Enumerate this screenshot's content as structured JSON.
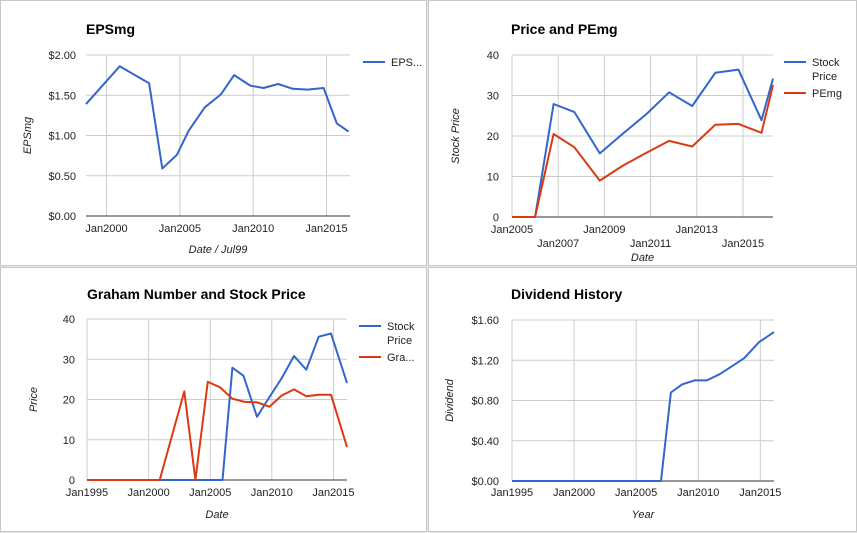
{
  "chart_data": [
    {
      "type": "line",
      "title": "EPSmg",
      "xlabel": "Date / Jul99",
      "ylabel": "EPSmg",
      "xlim": [
        1998.6,
        2016.6
      ],
      "ylim": [
        0,
        2
      ],
      "x_ticks": [
        {
          "v": 2000,
          "label": "Jan2000"
        },
        {
          "v": 2005,
          "label": "Jan2005"
        },
        {
          "v": 2010,
          "label": "Jan2010"
        },
        {
          "v": 2015,
          "label": "Jan2015"
        }
      ],
      "y_ticks": [
        {
          "v": 0,
          "label": "$0.00"
        },
        {
          "v": 0.5,
          "label": "$0.50"
        },
        {
          "v": 1,
          "label": "$1.00"
        },
        {
          "v": 1.5,
          "label": "$1.50"
        },
        {
          "v": 2,
          "label": "$2.00"
        }
      ],
      "grid": true,
      "legend_position": "right",
      "series": [
        {
          "name": "EPS...",
          "color": "#3366cc",
          "x": [
            1998.6,
            2000.9,
            2002.9,
            2003.8,
            2004.8,
            2005.6,
            2006.7,
            2007.8,
            2008.7,
            2009.8,
            2010.7,
            2011.7,
            2012.7,
            2013.7,
            2014.8,
            2015.7,
            2016.5
          ],
          "values": [
            1.39,
            1.86,
            1.65,
            0.59,
            0.76,
            1.06,
            1.35,
            1.51,
            1.75,
            1.62,
            1.59,
            1.64,
            1.58,
            1.57,
            1.59,
            1.15,
            1.05
          ]
        }
      ]
    },
    {
      "type": "line",
      "title": "Price and PEmg",
      "xlabel": "Date",
      "ylabel": "Stock Price",
      "xlim": [
        2005,
        2016.3
      ],
      "ylim": [
        0,
        40
      ],
      "x_ticks": [
        {
          "v": 2005,
          "label": "Jan2005",
          "row": 0
        },
        {
          "v": 2007,
          "label": "Jan2007",
          "row": 1
        },
        {
          "v": 2009,
          "label": "Jan2009",
          "row": 0
        },
        {
          "v": 2011,
          "label": "Jan2011",
          "row": 1
        },
        {
          "v": 2013,
          "label": "Jan2013",
          "row": 0
        },
        {
          "v": 2015,
          "label": "Jan2015",
          "row": 1
        }
      ],
      "y_ticks": [
        {
          "v": 0,
          "label": "0"
        },
        {
          "v": 10,
          "label": "10"
        },
        {
          "v": 20,
          "label": "20"
        },
        {
          "v": 30,
          "label": "30"
        },
        {
          "v": 40,
          "label": "40"
        }
      ],
      "grid": true,
      "legend_position": "right",
      "series": [
        {
          "name": "Stock Price",
          "color": "#3366cc",
          "x": [
            2005,
            2006,
            2006.8,
            2007.7,
            2008.8,
            2009.8,
            2010.8,
            2011.8,
            2012.8,
            2013.8,
            2014.8,
            2015.8,
            2016.3
          ],
          "values": [
            0,
            0,
            27.9,
            25.9,
            15.7,
            20.6,
            25.3,
            30.8,
            27.4,
            35.6,
            36.4,
            23.9,
            34.2
          ]
        },
        {
          "name": "PEmg",
          "color": "#dc3912",
          "x": [
            2005,
            2006,
            2006.8,
            2007.7,
            2008.8,
            2009.8,
            2010.8,
            2011.8,
            2012.8,
            2013.8,
            2014.8,
            2015.8,
            2016.3
          ],
          "values": [
            0,
            0,
            20.5,
            17.2,
            9.0,
            12.7,
            15.8,
            18.8,
            17.4,
            22.8,
            23.0,
            20.8,
            32.6
          ]
        }
      ]
    },
    {
      "type": "line",
      "title": "Graham Number and Stock Price",
      "xlabel": "Date",
      "ylabel": "Price",
      "xlim": [
        1995,
        2016.1
      ],
      "ylim": [
        0,
        40
      ],
      "x_ticks": [
        {
          "v": 1995,
          "label": "Jan1995"
        },
        {
          "v": 2000,
          "label": "Jan2000"
        },
        {
          "v": 2005,
          "label": "Jan2005"
        },
        {
          "v": 2010,
          "label": "Jan2010"
        },
        {
          "v": 2015,
          "label": "Jan2015"
        }
      ],
      "y_ticks": [
        {
          "v": 0,
          "label": "0"
        },
        {
          "v": 10,
          "label": "10"
        },
        {
          "v": 20,
          "label": "20"
        },
        {
          "v": 30,
          "label": "30"
        },
        {
          "v": 40,
          "label": "40"
        }
      ],
      "grid": true,
      "legend_position": "right",
      "series": [
        {
          "name": "Stock Price",
          "color": "#3366cc",
          "x": [
            1995,
            2006,
            2006.8,
            2007.7,
            2008.8,
            2009.8,
            2010.8,
            2011.8,
            2012.8,
            2013.8,
            2014.8,
            2016.1
          ],
          "values": [
            0,
            0,
            27.9,
            25.9,
            15.7,
            20.6,
            25.3,
            30.8,
            27.4,
            35.6,
            36.4,
            24.1
          ]
        },
        {
          "name": "Gra...",
          "color": "#dc3912",
          "x": [
            1995,
            2000.9,
            2002.9,
            2003.8,
            2004.8,
            2005.8,
            2006.8,
            2007.8,
            2008.8,
            2009.8,
            2010.8,
            2011.8,
            2012.8,
            2013.8,
            2014.8,
            2016.1
          ],
          "values": [
            0,
            0,
            22.0,
            0,
            24.4,
            23.0,
            20.2,
            19.4,
            19.3,
            18.2,
            21.0,
            22.5,
            20.8,
            21.2,
            21.2,
            8.2
          ]
        }
      ]
    },
    {
      "type": "line",
      "title": "Dividend History",
      "xlabel": "Year",
      "ylabel": "Dividend",
      "xlim": [
        1995,
        2016.1
      ],
      "ylim": [
        0,
        1.6
      ],
      "x_ticks": [
        {
          "v": 1995,
          "label": "Jan1995"
        },
        {
          "v": 2000,
          "label": "Jan2000"
        },
        {
          "v": 2005,
          "label": "Jan2005"
        },
        {
          "v": 2010,
          "label": "Jan2010"
        },
        {
          "v": 2015,
          "label": "Jan2015"
        }
      ],
      "y_ticks": [
        {
          "v": 0,
          "label": "$0.00"
        },
        {
          "v": 0.4,
          "label": "$0.40"
        },
        {
          "v": 0.8,
          "label": "$0.80"
        },
        {
          "v": 1.2,
          "label": "$1.20"
        },
        {
          "v": 1.6,
          "label": "$1.60"
        }
      ],
      "grid": true,
      "legend_position": "none",
      "series": [
        {
          "name": "",
          "color": "#3366cc",
          "x": [
            1995,
            2007,
            2007.8,
            2008.7,
            2009.7,
            2010.7,
            2011.7,
            2012.7,
            2013.7,
            2014.9,
            2016.1
          ],
          "values": [
            0,
            0,
            0.88,
            0.96,
            1.0,
            1.0,
            1.06,
            1.14,
            1.22,
            1.38,
            1.48
          ]
        }
      ]
    }
  ]
}
